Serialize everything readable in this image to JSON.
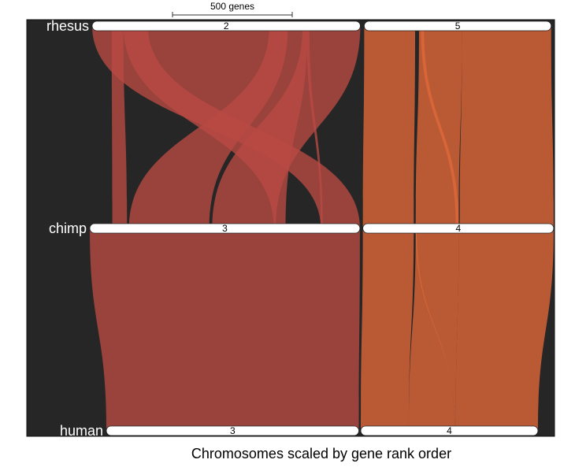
{
  "chart_data": {
    "type": "riparian",
    "caption": "Chromosomes scaled by gene rank order",
    "scale_bar": {
      "label": "500 genes",
      "genes": 500
    },
    "colors": {
      "background": "#262626",
      "chr2_3": "#b84a42",
      "chr5_4": "#e0683a",
      "ribbon_opacity": 0.8,
      "chromosome_fill": "#ffffff"
    },
    "genomes": [
      {
        "name": "rhesus",
        "chromosomes": [
          {
            "label": "2",
            "start": 0,
            "end": 1370
          },
          {
            "label": "5",
            "start": 1390,
            "end": 2345
          }
        ]
      },
      {
        "name": "chimp",
        "chromosomes": [
          {
            "label": "3",
            "start": 0,
            "end": 1380
          },
          {
            "label": "4",
            "start": 1395,
            "end": 2370
          }
        ]
      },
      {
        "name": "human",
        "chromosomes": [
          {
            "label": "3",
            "start": 0,
            "end": 1290
          },
          {
            "label": "4",
            "start": 1300,
            "end": 2205
          }
        ]
      }
    ],
    "blocks": [
      {
        "from_genome": 0,
        "to_genome": 1,
        "group": "chr2_3",
        "a": [
          0,
          285
        ],
        "b": [
          1180,
          1380
        ]
      },
      {
        "from_genome": 0,
        "to_genome": 1,
        "group": "chr2_3",
        "a": [
          100,
          160
        ],
        "b": [
          115,
          190
        ]
      },
      {
        "from_genome": 0,
        "to_genome": 1,
        "group": "chr2_3",
        "a": [
          160,
          1100
        ],
        "b": [
          940,
          1000
        ]
      },
      {
        "from_genome": 0,
        "to_genome": 1,
        "group": "chr2_3",
        "a": [
          905,
          1000
        ],
        "b": [
          200,
          610
        ]
      },
      {
        "from_genome": 0,
        "to_genome": 1,
        "group": "chr2_3",
        "a": [
          1075,
          1370
        ],
        "b": [
          625,
          950
        ]
      },
      {
        "from_genome": 0,
        "to_genome": 1,
        "group": "chr2_3",
        "a": [
          1095,
          1110
        ],
        "b": [
          1180,
          1190
        ]
      },
      {
        "from_genome": 0,
        "to_genome": 1,
        "group": "chr5_4",
        "a": [
          1390,
          1650
        ],
        "b": [
          1395,
          1655
        ]
      },
      {
        "from_genome": 0,
        "to_genome": 1,
        "group": "chr5_4",
        "a": [
          1670,
          1890
        ],
        "b": [
          1665,
          1885
        ]
      },
      {
        "from_genome": 0,
        "to_genome": 1,
        "group": "chr5_4",
        "a": [
          1680,
          1695
        ],
        "b": [
          1870,
          1885
        ]
      },
      {
        "from_genome": 0,
        "to_genome": 1,
        "group": "chr5_4",
        "a": [
          1890,
          2345
        ],
        "b": [
          1890,
          2370
        ]
      },
      {
        "from_genome": 1,
        "to_genome": 2,
        "group": "chr2_3",
        "a": [
          0,
          1380
        ],
        "b": [
          0,
          1290
        ]
      },
      {
        "from_genome": 1,
        "to_genome": 2,
        "group": "chr5_4",
        "a": [
          1395,
          1655
        ],
        "b": [
          1300,
          1545
        ]
      },
      {
        "from_genome": 1,
        "to_genome": 2,
        "group": "chr5_4",
        "a": [
          1665,
          1885
        ],
        "b": [
          1780,
          1785
        ]
      },
      {
        "from_genome": 1,
        "to_genome": 2,
        "group": "chr5_4",
        "a": [
          1665,
          1670
        ],
        "b": [
          1545,
          1780
        ]
      },
      {
        "from_genome": 1,
        "to_genome": 2,
        "group": "chr5_4",
        "a": [
          1885,
          2370
        ],
        "b": [
          1785,
          2205
        ]
      }
    ]
  }
}
